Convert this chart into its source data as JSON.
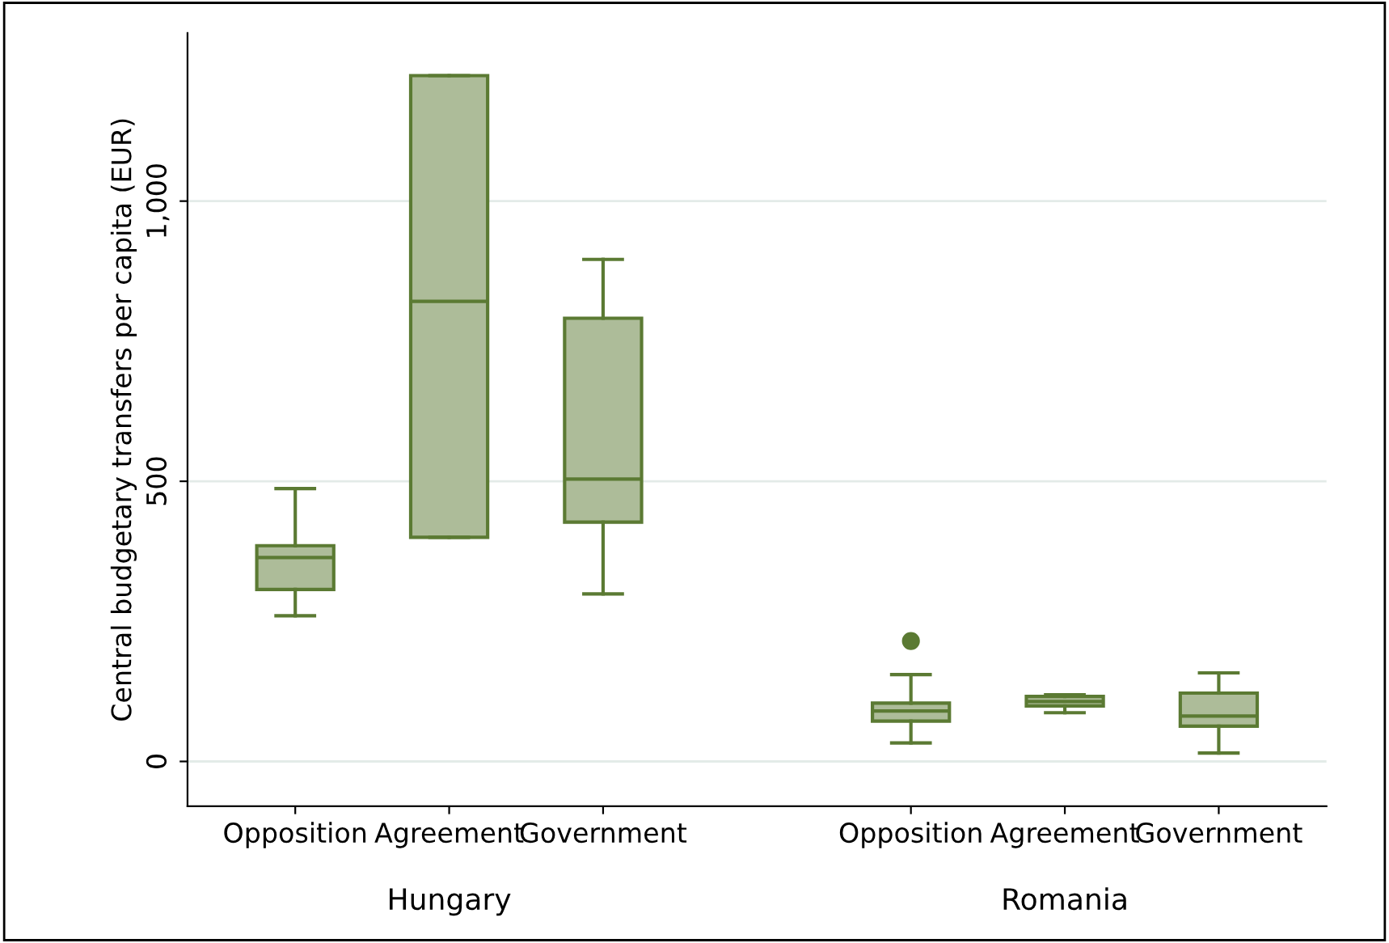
{
  "chart_data": {
    "type": "box",
    "ylabel": "Central budgetary transfers per capita (EUR)",
    "categories": [
      "Opposition",
      "Agreement",
      "Government",
      null,
      "Opposition",
      "Agreement",
      "Government"
    ],
    "annotations": [
      "Hungary",
      "Romania"
    ],
    "color": "#5b7a33",
    "boxes": [
      {
        "low": 260,
        "q1": 307,
        "median": 364,
        "q3": 385,
        "high": 487
      },
      {
        "low": 400,
        "q1": 400,
        "median": 821,
        "q3": 1224,
        "high": 1224
      },
      {
        "low": 299,
        "q1": 427,
        "median": 504,
        "q3": 791,
        "high": 896
      },
      null,
      {
        "low": 33,
        "q1": 72,
        "median": 90,
        "q3": 104,
        "high": 155,
        "outliers": [
          215
        ]
      },
      {
        "low": 87,
        "q1": 99,
        "median": 107,
        "q3": 116,
        "high": 119
      },
      {
        "low": 15,
        "q1": 63,
        "median": 81,
        "q3": 122,
        "high": 158
      }
    ],
    "ylim": [
      -80,
      1300
    ],
    "yticks": [
      0,
      500,
      {
        "value": 1000,
        "label": "1,000"
      }
    ],
    "grid": "y"
  }
}
